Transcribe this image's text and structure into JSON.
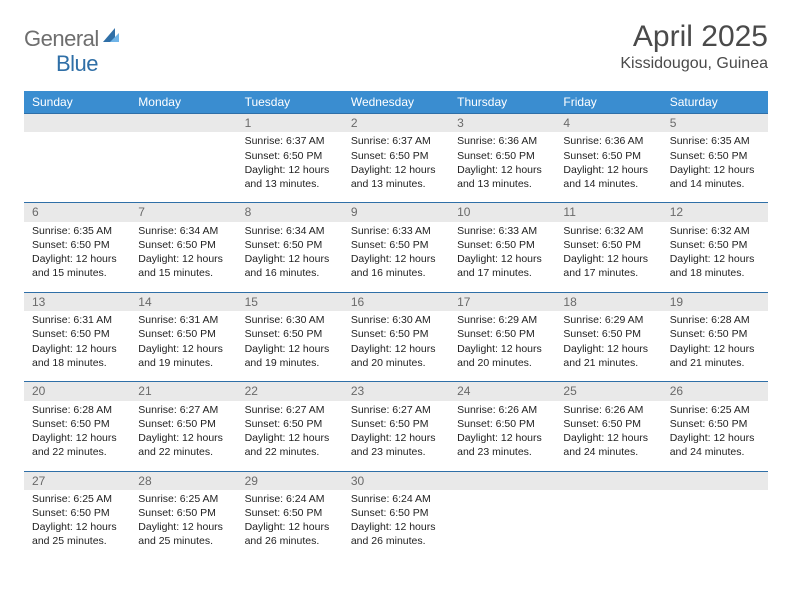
{
  "logo": {
    "general": "General",
    "blue": "Blue"
  },
  "title": "April 2025",
  "location": "Kissidougou, Guinea",
  "weekdays": [
    "Sunday",
    "Monday",
    "Tuesday",
    "Wednesday",
    "Thursday",
    "Friday",
    "Saturday"
  ],
  "colors": {
    "header_bg": "#3a8dd0",
    "header_text": "#ffffff",
    "daynum_bg": "#e9e9e9",
    "border": "#2f6fa7",
    "title_color": "#4a4a4a",
    "logo_general": "#6e6e6e",
    "logo_blue": "#2f6fa7"
  },
  "weeks": [
    [
      null,
      null,
      {
        "n": "1",
        "sunrise": "6:37 AM",
        "sunset": "6:50 PM",
        "daylight": "12 hours and 13 minutes."
      },
      {
        "n": "2",
        "sunrise": "6:37 AM",
        "sunset": "6:50 PM",
        "daylight": "12 hours and 13 minutes."
      },
      {
        "n": "3",
        "sunrise": "6:36 AM",
        "sunset": "6:50 PM",
        "daylight": "12 hours and 13 minutes."
      },
      {
        "n": "4",
        "sunrise": "6:36 AM",
        "sunset": "6:50 PM",
        "daylight": "12 hours and 14 minutes."
      },
      {
        "n": "5",
        "sunrise": "6:35 AM",
        "sunset": "6:50 PM",
        "daylight": "12 hours and 14 minutes."
      }
    ],
    [
      {
        "n": "6",
        "sunrise": "6:35 AM",
        "sunset": "6:50 PM",
        "daylight": "12 hours and 15 minutes."
      },
      {
        "n": "7",
        "sunrise": "6:34 AM",
        "sunset": "6:50 PM",
        "daylight": "12 hours and 15 minutes."
      },
      {
        "n": "8",
        "sunrise": "6:34 AM",
        "sunset": "6:50 PM",
        "daylight": "12 hours and 16 minutes."
      },
      {
        "n": "9",
        "sunrise": "6:33 AM",
        "sunset": "6:50 PM",
        "daylight": "12 hours and 16 minutes."
      },
      {
        "n": "10",
        "sunrise": "6:33 AM",
        "sunset": "6:50 PM",
        "daylight": "12 hours and 17 minutes."
      },
      {
        "n": "11",
        "sunrise": "6:32 AM",
        "sunset": "6:50 PM",
        "daylight": "12 hours and 17 minutes."
      },
      {
        "n": "12",
        "sunrise": "6:32 AM",
        "sunset": "6:50 PM",
        "daylight": "12 hours and 18 minutes."
      }
    ],
    [
      {
        "n": "13",
        "sunrise": "6:31 AM",
        "sunset": "6:50 PM",
        "daylight": "12 hours and 18 minutes."
      },
      {
        "n": "14",
        "sunrise": "6:31 AM",
        "sunset": "6:50 PM",
        "daylight": "12 hours and 19 minutes."
      },
      {
        "n": "15",
        "sunrise": "6:30 AM",
        "sunset": "6:50 PM",
        "daylight": "12 hours and 19 minutes."
      },
      {
        "n": "16",
        "sunrise": "6:30 AM",
        "sunset": "6:50 PM",
        "daylight": "12 hours and 20 minutes."
      },
      {
        "n": "17",
        "sunrise": "6:29 AM",
        "sunset": "6:50 PM",
        "daylight": "12 hours and 20 minutes."
      },
      {
        "n": "18",
        "sunrise": "6:29 AM",
        "sunset": "6:50 PM",
        "daylight": "12 hours and 21 minutes."
      },
      {
        "n": "19",
        "sunrise": "6:28 AM",
        "sunset": "6:50 PM",
        "daylight": "12 hours and 21 minutes."
      }
    ],
    [
      {
        "n": "20",
        "sunrise": "6:28 AM",
        "sunset": "6:50 PM",
        "daylight": "12 hours and 22 minutes."
      },
      {
        "n": "21",
        "sunrise": "6:27 AM",
        "sunset": "6:50 PM",
        "daylight": "12 hours and 22 minutes."
      },
      {
        "n": "22",
        "sunrise": "6:27 AM",
        "sunset": "6:50 PM",
        "daylight": "12 hours and 22 minutes."
      },
      {
        "n": "23",
        "sunrise": "6:27 AM",
        "sunset": "6:50 PM",
        "daylight": "12 hours and 23 minutes."
      },
      {
        "n": "24",
        "sunrise": "6:26 AM",
        "sunset": "6:50 PM",
        "daylight": "12 hours and 23 minutes."
      },
      {
        "n": "25",
        "sunrise": "6:26 AM",
        "sunset": "6:50 PM",
        "daylight": "12 hours and 24 minutes."
      },
      {
        "n": "26",
        "sunrise": "6:25 AM",
        "sunset": "6:50 PM",
        "daylight": "12 hours and 24 minutes."
      }
    ],
    [
      {
        "n": "27",
        "sunrise": "6:25 AM",
        "sunset": "6:50 PM",
        "daylight": "12 hours and 25 minutes."
      },
      {
        "n": "28",
        "sunrise": "6:25 AM",
        "sunset": "6:50 PM",
        "daylight": "12 hours and 25 minutes."
      },
      {
        "n": "29",
        "sunrise": "6:24 AM",
        "sunset": "6:50 PM",
        "daylight": "12 hours and 26 minutes."
      },
      {
        "n": "30",
        "sunrise": "6:24 AM",
        "sunset": "6:50 PM",
        "daylight": "12 hours and 26 minutes."
      },
      null,
      null,
      null
    ]
  ],
  "labels": {
    "sunrise": "Sunrise:",
    "sunset": "Sunset:",
    "daylight": "Daylight:"
  }
}
